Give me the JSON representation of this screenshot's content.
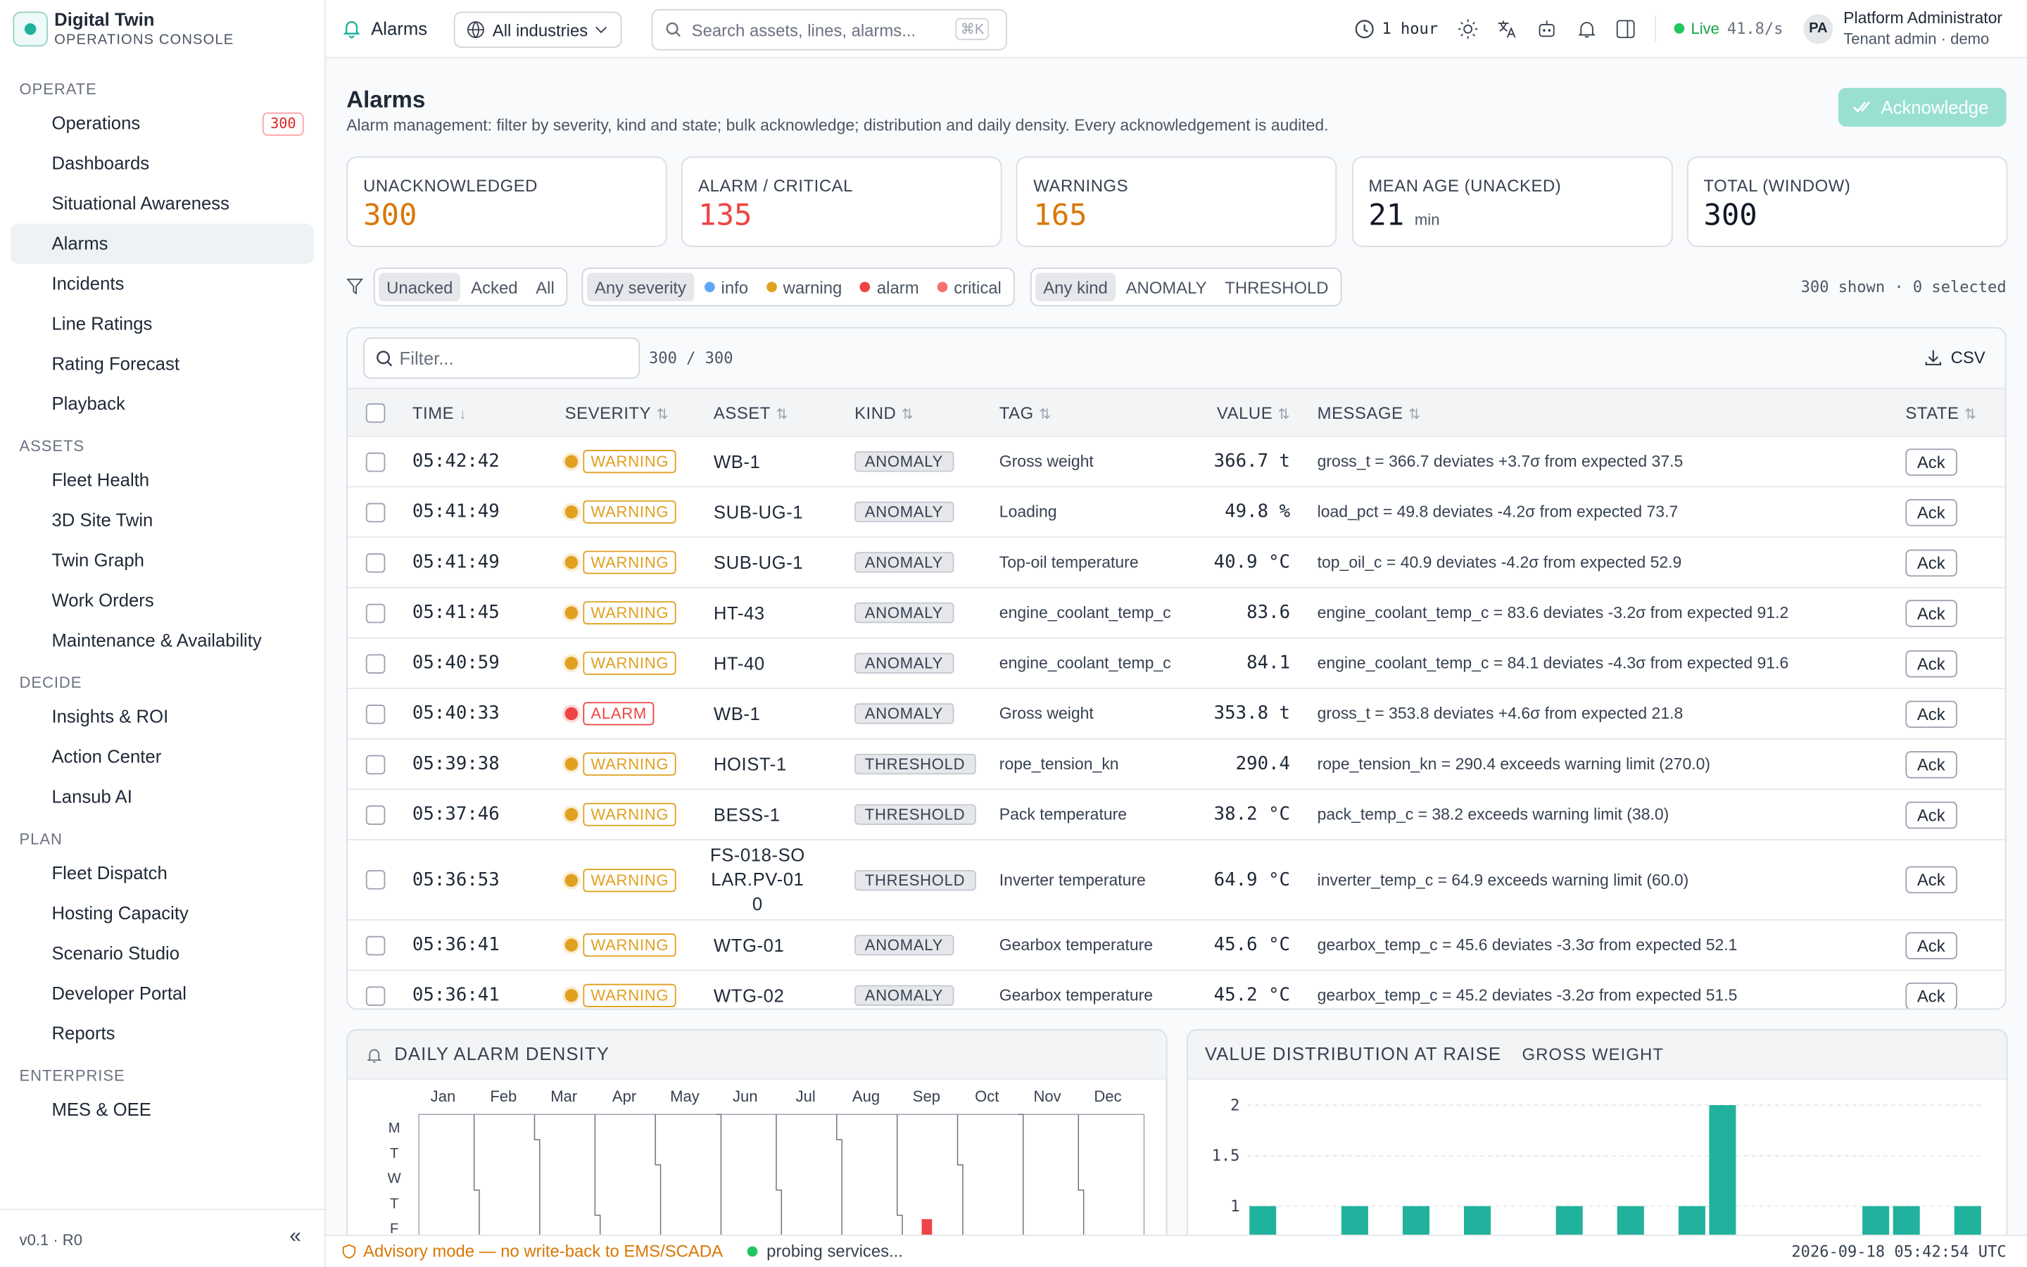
{
  "brand": {
    "title": "Digital Twin",
    "subtitle": "OPERATIONS CONSOLE"
  },
  "sidebar": [
    {
      "label": "OPERATE",
      "items": [
        {
          "label": "Operations",
          "badge": 300
        },
        {
          "label": "Dashboards"
        },
        {
          "label": "Situational Awareness"
        },
        {
          "label": "Alarms"
        },
        {
          "label": "Incidents"
        },
        {
          "label": "Line Ratings"
        },
        {
          "label": "Rating Forecast"
        },
        {
          "label": "Playback"
        }
      ]
    },
    {
      "label": "ASSETS",
      "items": [
        {
          "label": "Fleet Health"
        },
        {
          "label": "3D Site Twin"
        },
        {
          "label": "Twin Graph"
        },
        {
          "label": "Work Orders"
        },
        {
          "label": "Maintenance & Availability"
        }
      ]
    },
    {
      "label": "DECIDE",
      "items": [
        {
          "label": "Insights & ROI"
        },
        {
          "label": "Action Center"
        },
        {
          "label": "Lansub AI"
        }
      ]
    },
    {
      "label": "PLAN",
      "items": [
        {
          "label": "Fleet Dispatch"
        },
        {
          "label": "Hosting Capacity"
        },
        {
          "label": "Scenario Studio"
        },
        {
          "label": "Developer Portal"
        },
        {
          "label": "Reports"
        }
      ]
    },
    {
      "label": "ENTERPRISE",
      "items": [
        {
          "label": "MES & OEE"
        }
      ]
    }
  ],
  "version": "v0.1 · R0",
  "header": {
    "page": "Alarms",
    "industry": "All industries",
    "search": "Search assets, lines, alarms...",
    "shortcut": "⌘K",
    "window": "1 hour",
    "live": "Live",
    "rate": "41.8/s",
    "initials": "PA",
    "user": "Platform Administrator",
    "role": "Tenant admin · demo"
  },
  "page": {
    "title": "Alarms",
    "description": "Alarm management: filter by severity, kind and state; bulk acknowledge; distribution and daily density. Every acknowledgement is audited.",
    "action": "Acknowledge"
  },
  "stats": [
    {
      "label": "UNACKNOWLEDGED",
      "value": 300
    },
    {
      "label": "ALARM / CRITICAL",
      "value": 135
    },
    {
      "label": "WARNINGS",
      "value": 165
    },
    {
      "label": "MEAN AGE (UNACKED)",
      "value": 21,
      "unit": "min"
    },
    {
      "label": "TOTAL (WINDOW)",
      "value": 300
    }
  ],
  "filters": {
    "state": [
      "Unacked",
      "Acked",
      "All"
    ],
    "severity": [
      "Any severity",
      "info",
      "warning",
      "alarm",
      "critical"
    ],
    "kind": [
      "Any kind",
      "ANOMALY",
      "THRESHOLD"
    ],
    "status": "300 shown · 0 selected"
  },
  "table": {
    "filter": "Filter...",
    "count": "300 / 300",
    "export": "CSV",
    "columns": [
      "TIME",
      "SEVERITY",
      "ASSET",
      "KIND",
      "TAG",
      "VALUE",
      "MESSAGE",
      "STATE"
    ],
    "rows": [
      [
        "05:42:42",
        "WARNING",
        "WB-1",
        "ANOMALY",
        "Gross weight",
        "366.7 t",
        "gross_t = 366.7 deviates +3.7σ from expected 37.5",
        "Ack"
      ],
      [
        "05:41:49",
        "WARNING",
        "SUB-UG-1",
        "ANOMALY",
        "Loading",
        "49.8 %",
        "load_pct = 49.8 deviates -4.2σ from expected 73.7",
        "Ack"
      ],
      [
        "05:41:49",
        "WARNING",
        "SUB-UG-1",
        "ANOMALY",
        "Top-oil temperature",
        "40.9 °C",
        "top_oil_c = 40.9 deviates -4.2σ from expected 52.9",
        "Ack"
      ],
      [
        "05:41:45",
        "WARNING",
        "HT-43",
        "ANOMALY",
        "engine_coolant_temp_c",
        "83.6",
        "engine_coolant_temp_c = 83.6 deviates -3.2σ from expected 91.2",
        "Ack"
      ],
      [
        "05:40:59",
        "WARNING",
        "HT-40",
        "ANOMALY",
        "engine_coolant_temp_c",
        "84.1",
        "engine_coolant_temp_c = 84.1 deviates -4.3σ from expected 91.6",
        "Ack"
      ],
      [
        "05:40:33",
        "ALARM",
        "WB-1",
        "ANOMALY",
        "Gross weight",
        "353.8 t",
        "gross_t = 353.8 deviates +4.6σ from expected 21.8",
        "Ack"
      ],
      [
        "05:39:38",
        "WARNING",
        "HOIST-1",
        "THRESHOLD",
        "rope_tension_kn",
        "290.4",
        "rope_tension_kn = 290.4 exceeds warning limit (270.0)",
        "Ack"
      ],
      [
        "05:37:46",
        "WARNING",
        "BESS-1",
        "THRESHOLD",
        "Pack temperature",
        "38.2 °C",
        "pack_temp_c = 38.2 exceeds warning limit (38.0)",
        "Ack"
      ],
      [
        "05:36:53",
        "WARNING",
        "FS-018-SOLAR.PV-010",
        "THRESHOLD",
        "Inverter temperature",
        "64.9 °C",
        "inverter_temp_c = 64.9 exceeds warning limit (60.0)",
        "Ack"
      ],
      [
        "05:36:41",
        "WARNING",
        "WTG-01",
        "ANOMALY",
        "Gearbox temperature",
        "45.6 °C",
        "gearbox_temp_c = 45.6 deviates -3.3σ from expected 52.1",
        "Ack"
      ],
      [
        "05:36:41",
        "WARNING",
        "WTG-02",
        "ANOMALY",
        "Gearbox temperature",
        "45.2 °C",
        "gearbox_temp_c = 45.2 deviates -3.2σ from expected 51.5",
        "Ack"
      ]
    ]
  },
  "density": {
    "title": "DAILY ALARM DENSITY",
    "months": [
      "Jan",
      "Feb",
      "Mar",
      "Apr",
      "May",
      "Jun",
      "Jul",
      "Aug",
      "Sep",
      "Oct",
      "Nov",
      "Dec"
    ],
    "days": [
      "M",
      "T",
      "W",
      "T",
      "F"
    ]
  },
  "chart_data": {
    "type": "bar",
    "title": "VALUE DISTRIBUTION AT RAISE",
    "subtitle": "GROSS WEIGHT",
    "color": "#20b29c",
    "categories": [
      null,
      null,
      null,
      null,
      null,
      null,
      null,
      null,
      null,
      null,
      null,
      null,
      null,
      null,
      null,
      null,
      null,
      null,
      null,
      null,
      null,
      null,
      null,
      null
    ],
    "values": [
      1,
      0,
      0,
      1,
      0,
      1,
      0,
      1,
      0,
      0,
      1,
      0,
      1,
      0,
      1,
      2,
      0,
      0,
      0,
      0,
      1,
      1,
      0,
      1
    ],
    "ylim": [
      0,
      2.1
    ],
    "yticks": [
      1,
      1.5,
      2
    ],
    "grid": true
  },
  "footer": {
    "advisory": "Advisory mode — no write-back to EMS/SCADA",
    "services": "probing services...",
    "clock": "2026-09-18 05:42:54 UTC"
  }
}
